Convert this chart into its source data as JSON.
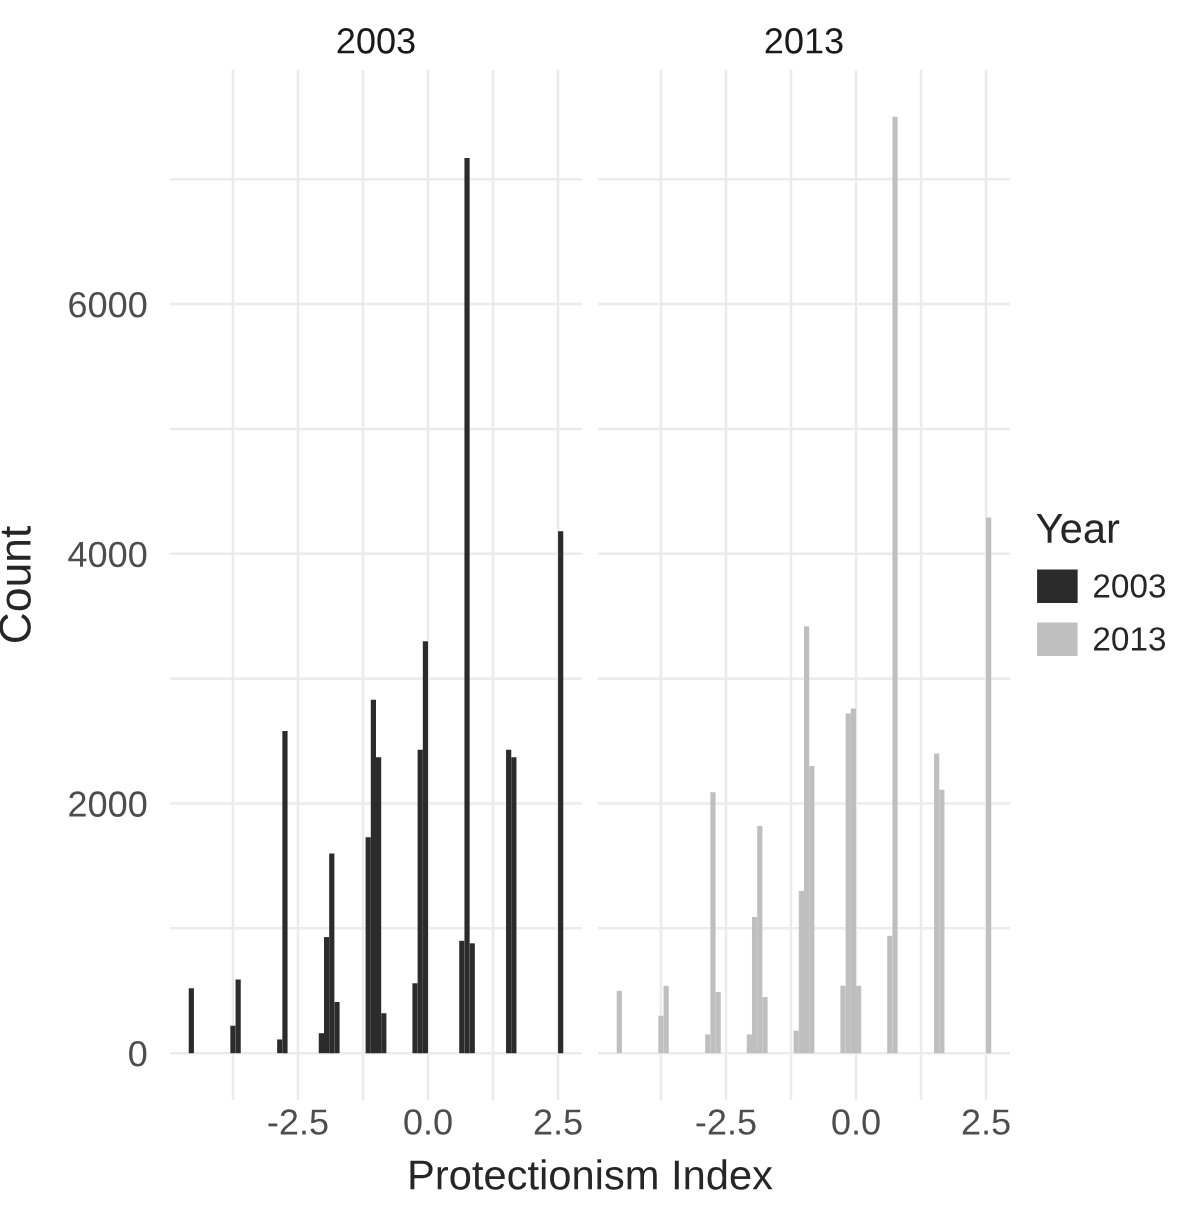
{
  "chart_data": [
    {
      "type": "histogram",
      "title": "2003",
      "ylabel": "Count",
      "xlabel": "Protectionism Index",
      "bins": [
        -4.6,
        -4.5,
        -4.4,
        -4.3,
        -4.2,
        -4.1,
        -4.0,
        -3.9,
        -3.8,
        -3.7,
        -3.6,
        -3.5,
        -3.4,
        -3.3,
        -3.2,
        -3.1,
        -3.0,
        -2.9,
        -2.8,
        -2.7,
        -2.6,
        -2.5,
        -2.4,
        -2.3,
        -2.2,
        -2.1,
        -2.0,
        -1.9,
        -1.8,
        -1.7,
        -1.6,
        -1.5,
        -1.4,
        -1.3,
        -1.2,
        -1.1,
        -1.0,
        -0.9,
        -0.8,
        -0.7,
        -0.6,
        -0.5,
        -0.4,
        -0.3,
        -0.2,
        -0.1,
        0.0,
        0.1,
        0.2,
        0.3,
        0.4,
        0.5,
        0.6,
        0.7,
        0.8,
        0.9,
        1.0,
        1.1,
        1.2,
        1.3,
        1.4,
        1.5,
        1.6,
        1.7,
        1.8,
        1.9,
        2.0,
        2.1,
        2.2,
        2.3,
        2.4,
        2.5,
        2.6
      ],
      "series": [
        {
          "name": "2003",
          "color": "#2b2b2b",
          "values": [
            520,
            0,
            0,
            0,
            0,
            0,
            0,
            0,
            220,
            590,
            0,
            0,
            0,
            0,
            0,
            0,
            0,
            110,
            2580,
            0,
            0,
            0,
            0,
            0,
            0,
            160,
            930,
            1600,
            410,
            0,
            0,
            0,
            0,
            0,
            1730,
            2830,
            2370,
            320,
            0,
            0,
            0,
            0,
            0,
            560,
            2430,
            3300,
            0,
            0,
            0,
            0,
            0,
            0,
            900,
            7170,
            880,
            0,
            0,
            0,
            0,
            0,
            0,
            2430,
            2370,
            0,
            0,
            0,
            0,
            0,
            0,
            0,
            0,
            4180
          ]
        }
      ],
      "xlim": [
        -4.96,
        2.96
      ],
      "ylim": [
        -375,
        7875
      ],
      "xticks": [
        {
          "value": -3.75,
          "label": null
        },
        {
          "value": -2.5,
          "label": "-2.5"
        },
        {
          "value": -1.25,
          "label": null
        },
        {
          "value": 0,
          "label": "0.0"
        },
        {
          "value": 1.25,
          "label": null
        },
        {
          "value": 2.5,
          "label": "2.5"
        }
      ],
      "yticks": [
        0,
        {
          "value": 1000,
          "label": null
        },
        2000,
        {
          "value": 3000,
          "label": null
        },
        4000,
        {
          "value": 5000,
          "label": null
        },
        6000,
        {
          "value": 7000,
          "label": null
        }
      ],
      "grid": true
    },
    {
      "type": "histogram",
      "title": "2013",
      "legend_title": "Year",
      "legend": "right",
      "tick_labels": "x",
      "bins": [
        -4.6,
        -4.5,
        -4.4,
        -4.3,
        -4.2,
        -4.1,
        -4.0,
        -3.9,
        -3.8,
        -3.7,
        -3.6,
        -3.5,
        -3.4,
        -3.3,
        -3.2,
        -3.1,
        -3.0,
        -2.9,
        -2.8,
        -2.7,
        -2.6,
        -2.5,
        -2.4,
        -2.3,
        -2.2,
        -2.1,
        -2.0,
        -1.9,
        -1.8,
        -1.7,
        -1.6,
        -1.5,
        -1.4,
        -1.3,
        -1.2,
        -1.1,
        -1.0,
        -0.9,
        -0.8,
        -0.7,
        -0.6,
        -0.5,
        -0.4,
        -0.3,
        -0.2,
        -0.1,
        0.0,
        0.1,
        0.2,
        0.3,
        0.4,
        0.5,
        0.6,
        0.7,
        0.8,
        0.9,
        1.0,
        1.1,
        1.2,
        1.3,
        1.4,
        1.5,
        1.6,
        1.7,
        1.8,
        1.9,
        2.0,
        2.1,
        2.2,
        2.3,
        2.4,
        2.5,
        2.6
      ],
      "series": [
        {
          "name": "2013",
          "color": "#bfbfbf",
          "values": [
            500,
            0,
            0,
            0,
            0,
            0,
            0,
            0,
            300,
            540,
            0,
            0,
            0,
            0,
            0,
            0,
            0,
            150,
            2090,
            490,
            0,
            0,
            0,
            0,
            0,
            150,
            1090,
            1820,
            450,
            0,
            0,
            0,
            0,
            0,
            180,
            1300,
            3420,
            2300,
            0,
            0,
            0,
            0,
            0,
            540,
            2720,
            2760,
            540,
            0,
            0,
            0,
            0,
            0,
            940,
            7500,
            0,
            0,
            0,
            0,
            0,
            0,
            0,
            2400,
            2110,
            0,
            0,
            0,
            0,
            0,
            0,
            0,
            0,
            4290
          ]
        }
      ],
      "xlim": [
        -4.96,
        2.96
      ],
      "ylim": [
        -375,
        7875
      ],
      "xticks": [
        {
          "value": -3.75,
          "label": null
        },
        {
          "value": -2.5,
          "label": "-2.5"
        },
        {
          "value": -1.25,
          "label": null
        },
        {
          "value": 0,
          "label": "0.0"
        },
        {
          "value": 1.25,
          "label": null
        },
        {
          "value": 2.5,
          "label": "2.5"
        }
      ],
      "yticks": [
        0,
        {
          "value": 1000,
          "label": null
        },
        2000,
        {
          "value": 3000,
          "label": null
        },
        4000,
        {
          "value": 5000,
          "label": null
        },
        6000,
        {
          "value": 7000,
          "label": null
        }
      ],
      "grid": true
    }
  ]
}
